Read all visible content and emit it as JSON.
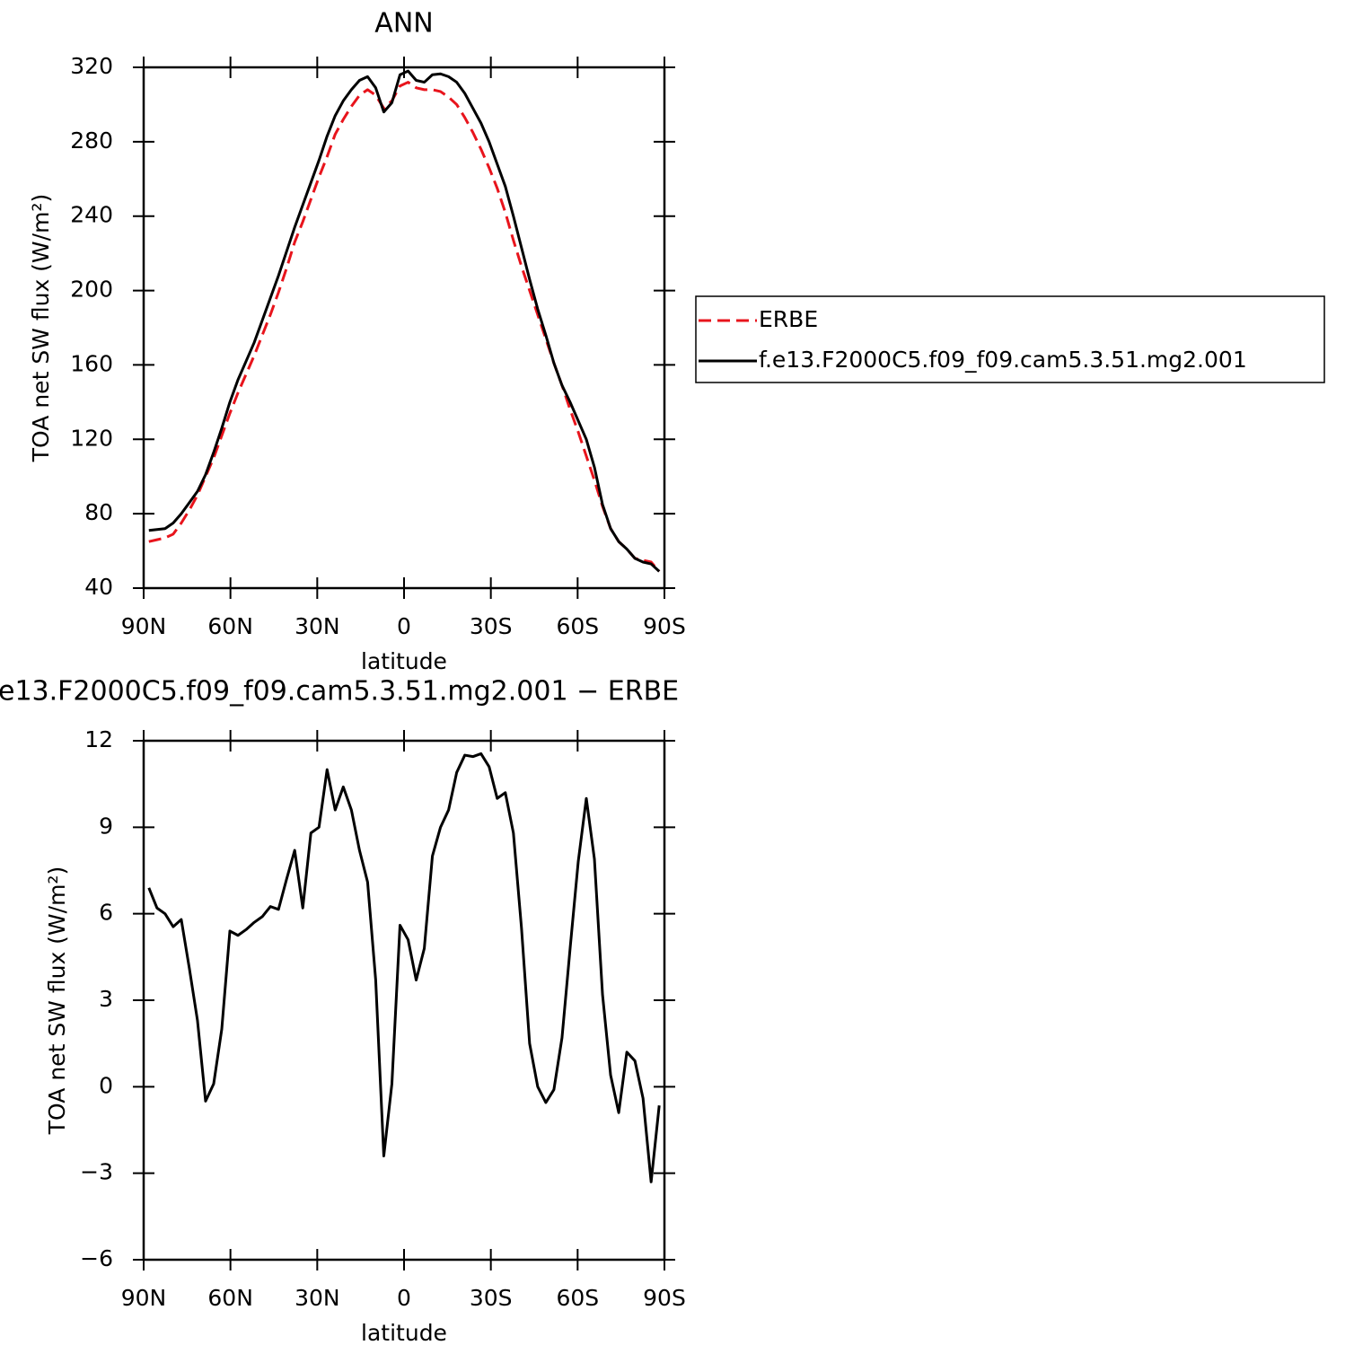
{
  "chart_data": [
    {
      "type": "line",
      "title": "ANN",
      "xlabel": "latitude",
      "ylabel": "TOA net SW flux (W/m²)",
      "x": [
        88.2,
        85.4,
        82.6,
        79.8,
        77.0,
        74.2,
        71.4,
        68.6,
        65.8,
        63.0,
        60.2,
        57.4,
        54.6,
        51.8,
        49.0,
        46.2,
        43.4,
        40.6,
        37.8,
        35.0,
        32.2,
        29.4,
        26.6,
        23.8,
        21.0,
        18.2,
        15.4,
        12.6,
        9.8,
        7.0,
        4.2,
        1.4,
        -1.4,
        -4.2,
        -7.0,
        -9.8,
        -12.6,
        -15.4,
        -18.2,
        -21.0,
        -23.8,
        -26.6,
        -29.4,
        -32.2,
        -35.0,
        -37.8,
        -40.6,
        -43.4,
        -46.2,
        -49.0,
        -51.8,
        -54.6,
        -57.4,
        -60.2,
        -63.0,
        -65.8,
        -68.6,
        -71.4,
        -74.2,
        -77.0,
        -79.8,
        -82.6,
        -85.4,
        -88.2
      ],
      "series": [
        {
          "name": "ERBE",
          "color": "#e8141c",
          "linestyle": "dashed",
          "values": [
            65,
            66,
            67,
            69,
            75,
            82,
            90,
            100,
            110,
            122,
            134,
            145,
            155,
            165,
            176,
            187,
            199,
            212,
            226,
            237,
            249,
            261,
            272,
            284,
            292,
            299,
            305,
            308,
            305,
            298,
            302,
            310,
            312,
            309,
            308,
            308,
            307,
            304,
            300,
            293,
            285,
            276,
            266,
            255,
            242,
            227,
            213,
            200,
            187,
            174,
            161,
            149,
            136,
            124,
            111,
            98,
            84,
            72,
            65,
            61,
            56,
            55,
            54,
            49
          ]
        },
        {
          "name": "f.e13.F2000C5.f09_f09.cam5.3.51.mg2.001",
          "color": "#000000",
          "linestyle": "solid",
          "values": [
            71,
            71.5,
            72,
            75,
            80,
            86,
            92,
            101,
            113,
            126,
            140,
            152,
            162,
            172,
            184,
            196,
            208,
            221,
            234,
            246,
            258,
            270,
            283,
            294,
            302,
            308,
            313,
            315,
            309,
            296,
            301,
            316,
            318,
            313,
            312,
            316,
            316.5,
            315,
            312,
            306,
            298,
            290,
            280,
            268,
            256,
            240,
            223,
            206,
            190,
            176,
            161,
            149,
            140,
            130,
            120,
            105,
            85,
            72,
            65,
            61,
            56,
            54,
            53,
            49
          ]
        }
      ],
      "xlim": [
        90,
        -90
      ],
      "xticks": [
        {
          "value": 90,
          "label": "90N"
        },
        {
          "value": 60,
          "label": "60N"
        },
        {
          "value": 30,
          "label": "30N"
        },
        0,
        {
          "value": -30,
          "label": "30S"
        },
        {
          "value": -60,
          "label": "60S"
        },
        {
          "value": -90,
          "label": "90S"
        }
      ],
      "ylim": [
        40,
        320
      ],
      "yticks": [
        40,
        80,
        120,
        160,
        200,
        240,
        280,
        320
      ],
      "legend": "right"
    },
    {
      "type": "line",
      "title": "e13.F2000C5.f09_f09.cam5.3.51.mg2.001 − ERBE",
      "xlabel": "latitude",
      "ylabel": "TOA net SW flux (W/m²)",
      "x": [
        88.2,
        85.4,
        82.6,
        79.8,
        77.0,
        74.2,
        71.4,
        68.6,
        65.8,
        63.0,
        60.2,
        57.4,
        54.6,
        51.8,
        49.0,
        46.2,
        43.4,
        40.6,
        37.8,
        35.0,
        32.2,
        29.4,
        26.6,
        23.8,
        21.0,
        18.2,
        15.4,
        12.6,
        9.8,
        7.0,
        4.2,
        1.4,
        -1.4,
        -4.2,
        -7.0,
        -9.8,
        -12.6,
        -15.4,
        -18.2,
        -21.0,
        -23.8,
        -26.6,
        -29.4,
        -32.2,
        -35.0,
        -37.8,
        -40.6,
        -43.4,
        -46.2,
        -49.0,
        -51.8,
        -54.6,
        -57.4,
        -60.2,
        -63.0,
        -65.8,
        -68.6,
        -71.4,
        -74.2,
        -77.0,
        -79.8,
        -82.6,
        -85.4,
        -88.2
      ],
      "color": "#000000",
      "values": [
        6.9,
        6.2,
        6.0,
        5.55,
        5.8,
        4.1,
        2.3,
        -0.5,
        0.1,
        2.0,
        5.4,
        5.25,
        5.45,
        5.7,
        5.9,
        6.25,
        6.15,
        7.2,
        8.2,
        6.2,
        8.8,
        9.0,
        11.0,
        9.6,
        10.4,
        9.6,
        8.2,
        7.1,
        3.7,
        -2.4,
        0.1,
        5.6,
        5.1,
        3.7,
        4.8,
        8.0,
        9.0,
        9.6,
        10.9,
        11.5,
        11.45,
        11.55,
        11.1,
        10.0,
        10.2,
        8.8,
        5.5,
        1.5,
        0.0,
        -0.55,
        -0.1,
        1.7,
        4.8,
        7.8,
        10.0,
        7.9,
        3.2,
        0.4,
        -0.9,
        1.2,
        0.9,
        -0.4,
        -3.3,
        -0.65
      ],
      "xlim": [
        90,
        -90
      ],
      "xticks": [
        {
          "value": 90,
          "label": "90N"
        },
        {
          "value": 60,
          "label": "60N"
        },
        {
          "value": 30,
          "label": "30N"
        },
        0,
        {
          "value": -30,
          "label": "30S"
        },
        {
          "value": -60,
          "label": "60S"
        },
        {
          "value": -90,
          "label": "90S"
        }
      ],
      "ylim": [
        -6,
        12
      ],
      "yticks": [
        {
          "value": -6,
          "label": "−6"
        },
        {
          "value": -3,
          "label": "−3"
        },
        0,
        3,
        6,
        9,
        12
      ]
    }
  ]
}
